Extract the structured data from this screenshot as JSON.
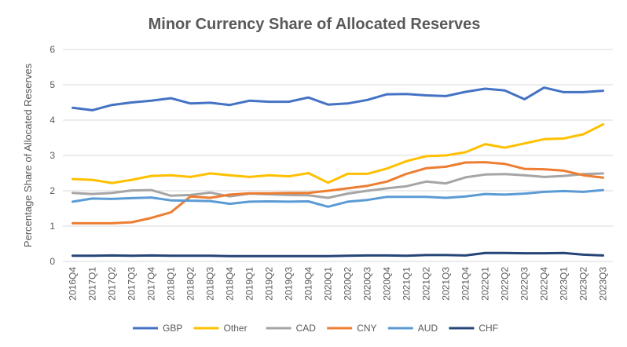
{
  "chart_data": {
    "type": "line",
    "title": "Minor Currency Share of Allocated Reserves",
    "xlabel": "",
    "ylabel": "Percentage Share of Allocated Reserves",
    "ylim": [
      0,
      6
    ],
    "yticks": [
      0,
      1,
      2,
      3,
      4,
      5,
      6
    ],
    "grid": true,
    "legend_position": "bottom",
    "categories": [
      "2016Q4",
      "2017Q1",
      "2017Q2",
      "2017Q3",
      "2017Q4",
      "2018Q1",
      "2018Q2",
      "2018Q3",
      "2018Q4",
      "2019Q1",
      "2019Q2",
      "2019Q3",
      "2019Q4",
      "2020Q1",
      "2020Q2",
      "2020Q3",
      "2020Q4",
      "2021Q1",
      "2021Q2",
      "2021Q3",
      "2021Q4",
      "2022Q1",
      "2022Q2",
      "2022Q3",
      "2022Q4",
      "2023Q1",
      "2023Q2",
      "2023Q3"
    ],
    "series": [
      {
        "name": "GBP",
        "color": "#4472c4",
        "values": [
          4.35,
          4.28,
          4.43,
          4.5,
          4.55,
          4.62,
          4.47,
          4.49,
          4.43,
          4.55,
          4.52,
          4.52,
          4.64,
          4.44,
          4.47,
          4.57,
          4.73,
          4.74,
          4.7,
          4.68,
          4.8,
          4.89,
          4.84,
          4.59,
          4.92,
          4.79,
          4.79,
          4.83
        ]
      },
      {
        "name": "Other",
        "color": "#ffc000",
        "values": [
          2.33,
          2.31,
          2.22,
          2.31,
          2.42,
          2.44,
          2.39,
          2.49,
          2.44,
          2.39,
          2.44,
          2.41,
          2.5,
          2.23,
          2.48,
          2.48,
          2.63,
          2.84,
          2.98,
          3.0,
          3.09,
          3.32,
          3.22,
          3.34,
          3.46,
          3.48,
          3.6,
          3.88
        ]
      },
      {
        "name": "CAD",
        "color": "#a5a5a5",
        "values": [
          1.94,
          1.91,
          1.94,
          2.01,
          2.02,
          1.86,
          1.88,
          1.95,
          1.84,
          1.92,
          1.9,
          1.88,
          1.87,
          1.8,
          1.92,
          2.0,
          2.07,
          2.13,
          2.26,
          2.21,
          2.38,
          2.46,
          2.47,
          2.44,
          2.39,
          2.42,
          2.47,
          2.49
        ]
      },
      {
        "name": "CNY",
        "color": "#ed7d31",
        "values": [
          1.08,
          1.08,
          1.08,
          1.11,
          1.23,
          1.39,
          1.84,
          1.8,
          1.89,
          1.93,
          1.93,
          1.94,
          1.94,
          2.0,
          2.07,
          2.14,
          2.26,
          2.48,
          2.64,
          2.68,
          2.8,
          2.81,
          2.76,
          2.62,
          2.61,
          2.57,
          2.44,
          2.37
        ]
      },
      {
        "name": "AUD",
        "color": "#5b9bd5",
        "values": [
          1.69,
          1.78,
          1.77,
          1.79,
          1.81,
          1.73,
          1.72,
          1.71,
          1.63,
          1.69,
          1.7,
          1.69,
          1.7,
          1.55,
          1.69,
          1.74,
          1.83,
          1.83,
          1.83,
          1.8,
          1.84,
          1.91,
          1.89,
          1.92,
          1.97,
          1.99,
          1.97,
          2.02
        ]
      },
      {
        "name": "CHF",
        "color": "#264478",
        "values": [
          0.16,
          0.16,
          0.17,
          0.16,
          0.17,
          0.16,
          0.16,
          0.16,
          0.15,
          0.15,
          0.15,
          0.15,
          0.15,
          0.15,
          0.16,
          0.17,
          0.17,
          0.16,
          0.18,
          0.18,
          0.17,
          0.24,
          0.24,
          0.23,
          0.23,
          0.24,
          0.19,
          0.17
        ]
      }
    ]
  }
}
